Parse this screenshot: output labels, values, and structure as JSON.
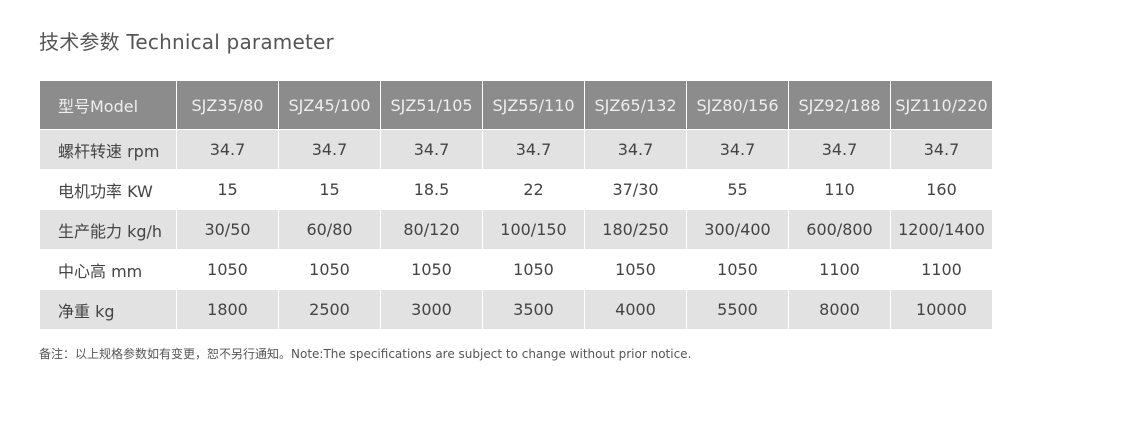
{
  "title": "技术参数 Technical parameter",
  "table": {
    "header_label": "型号Model",
    "models": [
      "SJZ35/80",
      "SJZ45/100",
      "SJZ51/105",
      "SJZ55/110",
      "SJZ65/132",
      "SJZ80/156",
      "SJZ92/188",
      "SJZ110/220"
    ],
    "rows": [
      {
        "label": "螺杆转速 rpm",
        "values": [
          "34.7",
          "34.7",
          "34.7",
          "34.7",
          "34.7",
          "34.7",
          "34.7",
          "34.7"
        ]
      },
      {
        "label": "电机功率 KW",
        "values": [
          "15",
          "15",
          "18.5",
          "22",
          "37/30",
          "55",
          "110",
          "160"
        ]
      },
      {
        "label": "生产能力 kg/h",
        "values": [
          "30/50",
          "60/80",
          "80/120",
          "100/150",
          "180/250",
          "300/400",
          "600/800",
          "1200/1400"
        ]
      },
      {
        "label": "中心高 mm",
        "values": [
          "1050",
          "1050",
          "1050",
          "1050",
          "1050",
          "1050",
          "1100",
          "1100"
        ]
      },
      {
        "label": "净重 kg",
        "values": [
          "1800",
          "2500",
          "3000",
          "3500",
          "4000",
          "5500",
          "8000",
          "10000"
        ]
      }
    ]
  },
  "note": "备注：以上规格参数如有变更，恕不另行通知。Note:The specifications are subject to change without prior notice.",
  "colors": {
    "header_bg": "#8c8c8c",
    "shaded_row_bg": "#e2e2e2",
    "text": "#444444"
  }
}
